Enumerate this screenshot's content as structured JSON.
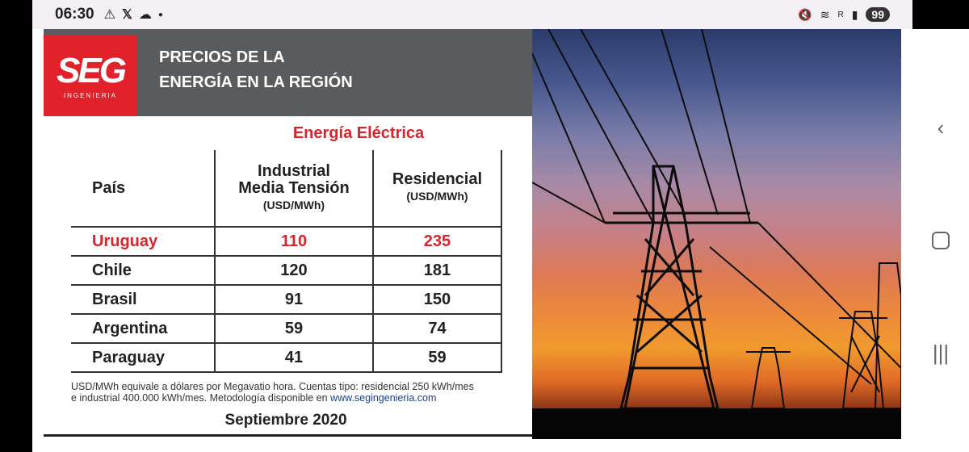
{
  "status": {
    "time": "06:30",
    "battery": "99",
    "network": "R"
  },
  "header": {
    "logo_main": "SEG",
    "logo_sub": "INGENIERIA",
    "title_line1": "PRECIOS DE LA",
    "title_line2": "ENERGÍA EN LA REGIÓN"
  },
  "table": {
    "section_title": "Energía Eléctrica",
    "col_country": "País",
    "col_industrial_line1": "Industrial",
    "col_industrial_line2": "Media Tensión",
    "col_industrial_unit": "(USD/MWh)",
    "col_residential": "Residencial",
    "col_residential_unit": "(USD/MWh)",
    "rows": [
      {
        "country": "Uruguay",
        "industrial": "110",
        "residential": "235"
      },
      {
        "country": "Chile",
        "industrial": "120",
        "residential": "181"
      },
      {
        "country": "Brasil",
        "industrial": "91",
        "residential": "150"
      },
      {
        "country": "Argentina",
        "industrial": "59",
        "residential": "74"
      },
      {
        "country": "Paraguay",
        "industrial": "41",
        "residential": "59"
      }
    ]
  },
  "footnote": {
    "line1": "USD/MWh equivale a dólares por Megavatio hora. Cuentas tipo: residencial 250 kWh/mes",
    "line2": "e industrial 400.000 kWh/mes. Metodología disponible en",
    "link": "www.segingenieria.com"
  },
  "date": "Septiembre 2020",
  "colors": {
    "accent": "#d8242b",
    "header_band": "#5a5b5d"
  },
  "icons": {
    "status_left": [
      "warning-icon",
      "x-logo-icon",
      "cloud-icon",
      "dot-icon"
    ],
    "status_right": [
      "mute-icon",
      "wifi-icon",
      "signal-icon"
    ],
    "nav": [
      "back-icon",
      "home-icon",
      "recents-icon"
    ]
  }
}
